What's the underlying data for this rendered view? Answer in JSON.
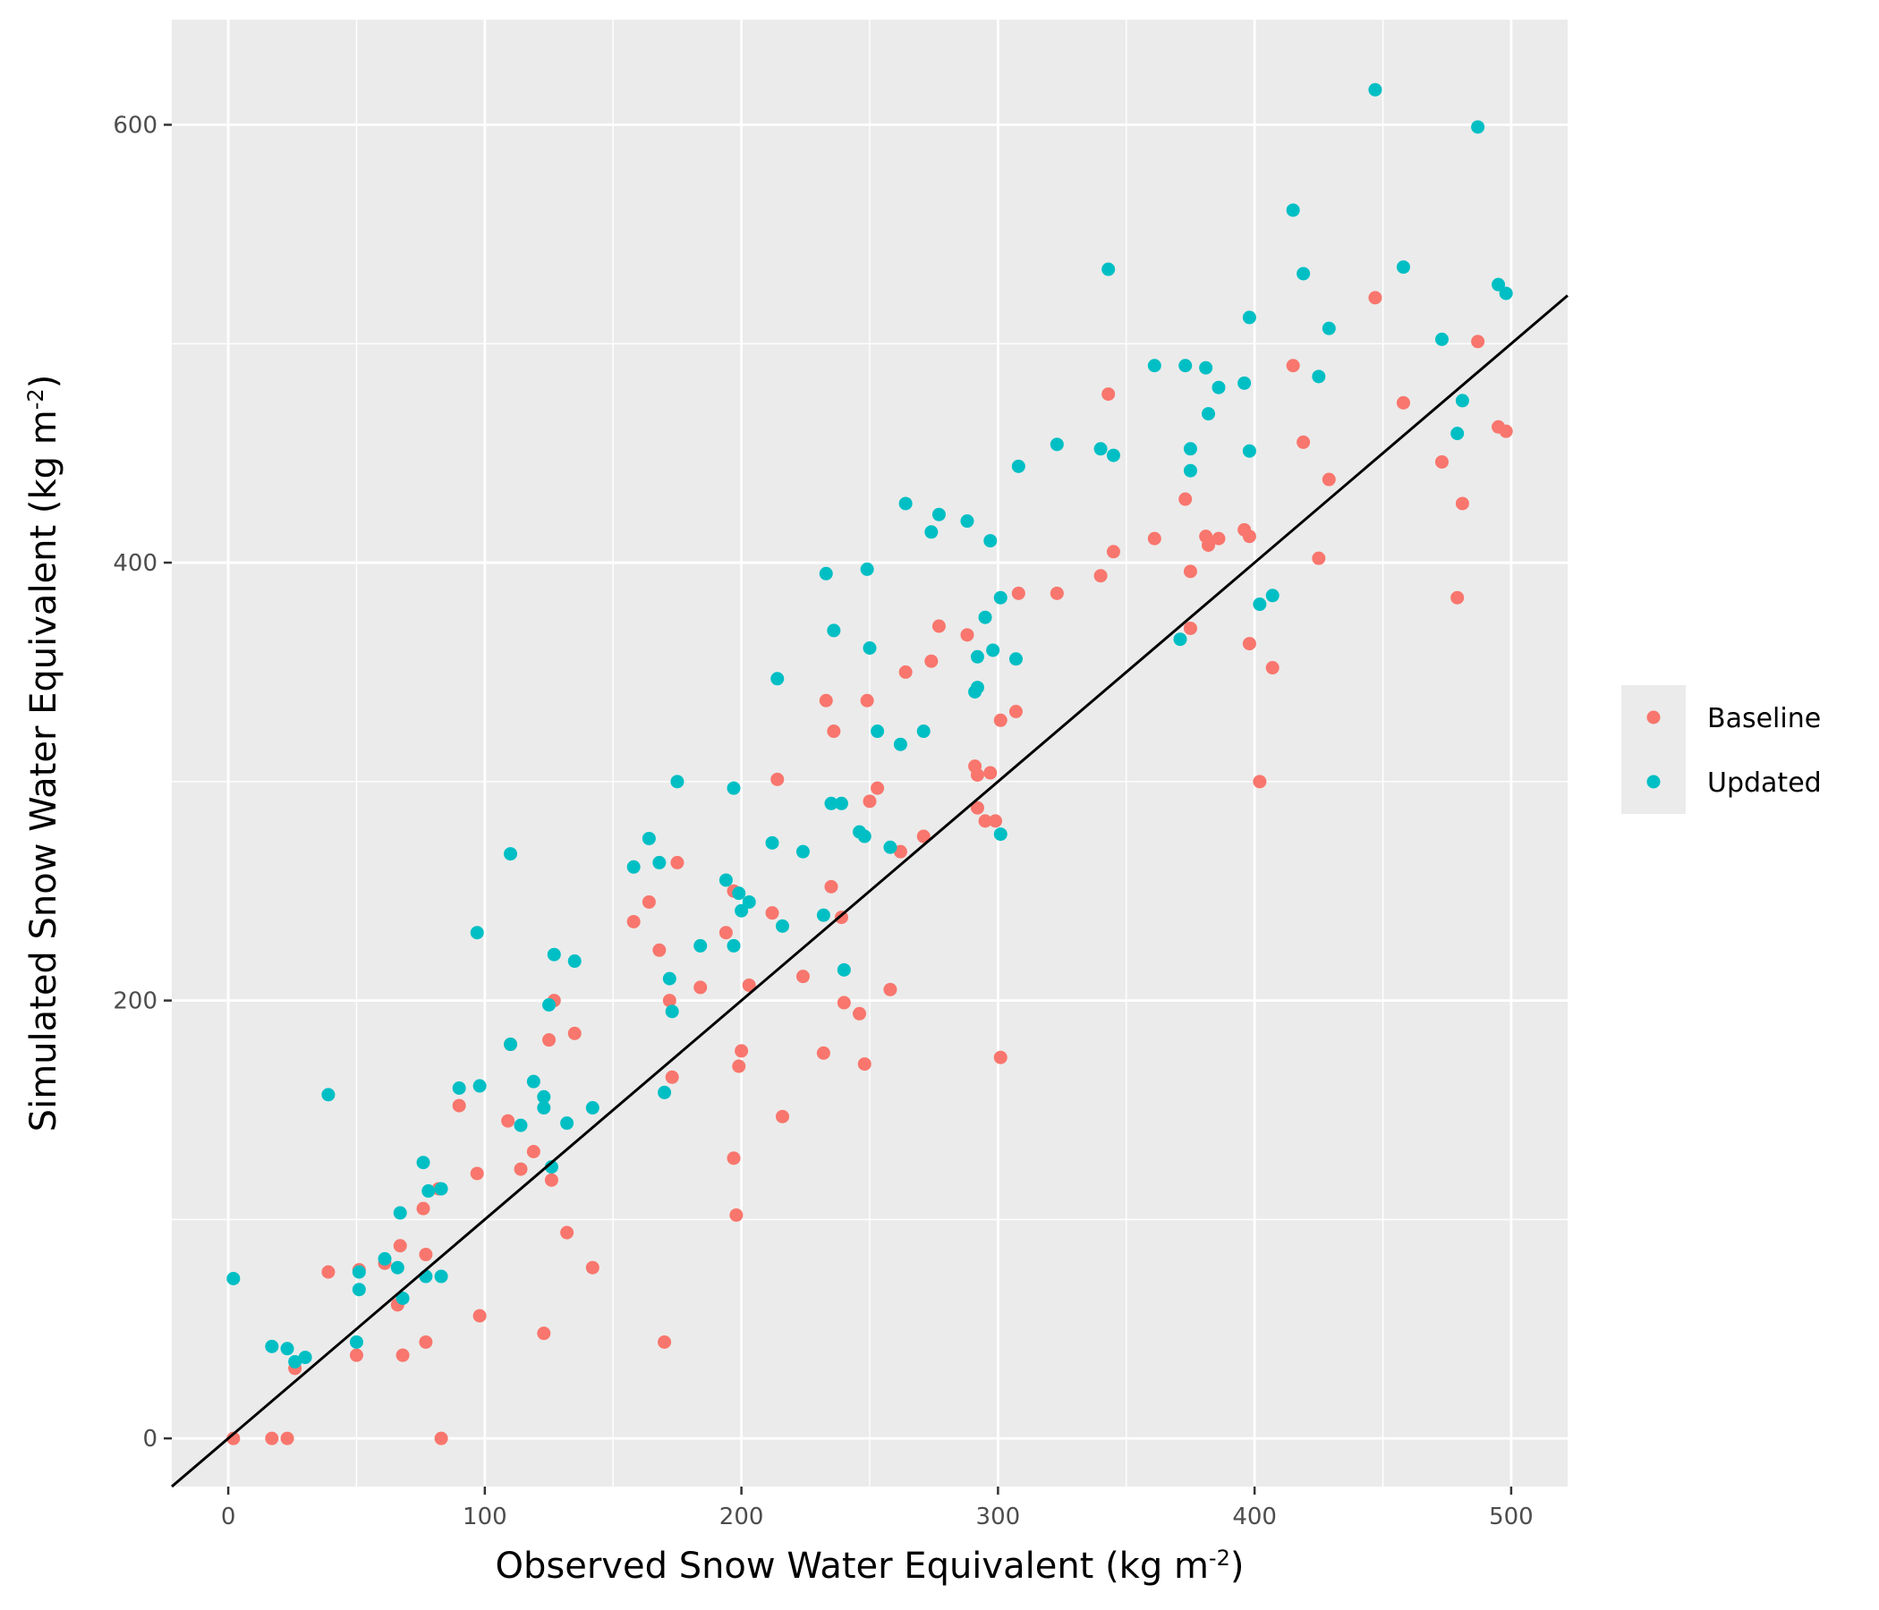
{
  "chart_data": {
    "type": "scatter",
    "xlabel": "Observed Snow Water Equivalent (kg m",
    "xlabel_sup": "-2",
    "xlabel_end": ")",
    "ylabel": "Simulated Snow Water Equivalent (kg m",
    "ylabel_sup": "-2",
    "ylabel_end": ")",
    "xlim": [
      -22,
      522
    ],
    "ylim": [
      -22,
      648
    ],
    "xticks": [
      0,
      100,
      200,
      300,
      400,
      500
    ],
    "yticks": [
      0,
      200,
      400,
      600
    ],
    "xtick_labels": [
      "0",
      "100",
      "200",
      "300",
      "400",
      "500"
    ],
    "ytick_labels": [
      "0",
      "200",
      "400",
      "600"
    ],
    "grid": true,
    "legend_position": "right",
    "reference_line": {
      "type": "1:1",
      "x": [
        -22,
        522
      ],
      "y": [
        -22,
        522
      ]
    },
    "series": [
      {
        "name": "Baseline",
        "color": "#F8766D",
        "points": [
          [
            2,
            0
          ],
          [
            17,
            0
          ],
          [
            23,
            0
          ],
          [
            26,
            32
          ],
          [
            39,
            76
          ],
          [
            50,
            38
          ],
          [
            51,
            77
          ],
          [
            61,
            80
          ],
          [
            66,
            61
          ],
          [
            67,
            88
          ],
          [
            68,
            38
          ],
          [
            76,
            105
          ],
          [
            77,
            84
          ],
          [
            77,
            44
          ],
          [
            82,
            114
          ],
          [
            83,
            0
          ],
          [
            90,
            152
          ],
          [
            97,
            121
          ],
          [
            98,
            56
          ],
          [
            109,
            145
          ],
          [
            110,
            180
          ],
          [
            114,
            123
          ],
          [
            119,
            131
          ],
          [
            123,
            48
          ],
          [
            125,
            182
          ],
          [
            126,
            118
          ],
          [
            127,
            200
          ],
          [
            132,
            94
          ],
          [
            135,
            185
          ],
          [
            142,
            78
          ],
          [
            158,
            236
          ],
          [
            164,
            245
          ],
          [
            168,
            223
          ],
          [
            170,
            44
          ],
          [
            172,
            200
          ],
          [
            173,
            165
          ],
          [
            175,
            263
          ],
          [
            184,
            206
          ],
          [
            194,
            231
          ],
          [
            197,
            250
          ],
          [
            197,
            128
          ],
          [
            198,
            102
          ],
          [
            199,
            170
          ],
          [
            200,
            177
          ],
          [
            203,
            207
          ],
          [
            212,
            240
          ],
          [
            214,
            301
          ],
          [
            216,
            147
          ],
          [
            224,
            211
          ],
          [
            232,
            176
          ],
          [
            233,
            337
          ],
          [
            235,
            252
          ],
          [
            236,
            323
          ],
          [
            239,
            238
          ],
          [
            240,
            199
          ],
          [
            246,
            194
          ],
          [
            248,
            171
          ],
          [
            249,
            337
          ],
          [
            250,
            291
          ],
          [
            253,
            297
          ],
          [
            258,
            205
          ],
          [
            262,
            268
          ],
          [
            264,
            350
          ],
          [
            271,
            275
          ],
          [
            274,
            355
          ],
          [
            277,
            371
          ],
          [
            288,
            367
          ],
          [
            291,
            307
          ],
          [
            292,
            303
          ],
          [
            292,
            288
          ],
          [
            295,
            282
          ],
          [
            297,
            304
          ],
          [
            299,
            282
          ],
          [
            301,
            328
          ],
          [
            301,
            174
          ],
          [
            307,
            332
          ],
          [
            308,
            386
          ],
          [
            323,
            386
          ],
          [
            340,
            394
          ],
          [
            343,
            477
          ],
          [
            345,
            405
          ],
          [
            361,
            411
          ],
          [
            373,
            429
          ],
          [
            375,
            370
          ],
          [
            375,
            396
          ],
          [
            381,
            412
          ],
          [
            382,
            408
          ],
          [
            386,
            411
          ],
          [
            396,
            415
          ],
          [
            398,
            412
          ],
          [
            398,
            363
          ],
          [
            402,
            300
          ],
          [
            407,
            352
          ],
          [
            415,
            490
          ],
          [
            419,
            455
          ],
          [
            425,
            402
          ],
          [
            429,
            438
          ],
          [
            447,
            521
          ],
          [
            458,
            473
          ],
          [
            473,
            446
          ],
          [
            479,
            384
          ],
          [
            481,
            427
          ],
          [
            487,
            501
          ],
          [
            495,
            462
          ],
          [
            498,
            460
          ]
        ]
      },
      {
        "name": "Updated",
        "color": "#00BFC4",
        "points": [
          [
            2,
            73
          ],
          [
            17,
            42
          ],
          [
            23,
            41
          ],
          [
            26,
            35
          ],
          [
            30,
            37
          ],
          [
            39,
            157
          ],
          [
            50,
            44
          ],
          [
            51,
            76
          ],
          [
            51,
            68
          ],
          [
            61,
            82
          ],
          [
            66,
            78
          ],
          [
            67,
            103
          ],
          [
            68,
            64
          ],
          [
            76,
            126
          ],
          [
            77,
            74
          ],
          [
            78,
            113
          ],
          [
            83,
            114
          ],
          [
            83,
            74
          ],
          [
            90,
            160
          ],
          [
            97,
            231
          ],
          [
            98,
            161
          ],
          [
            110,
            267
          ],
          [
            110,
            180
          ],
          [
            114,
            143
          ],
          [
            119,
            163
          ],
          [
            123,
            156
          ],
          [
            123,
            151
          ],
          [
            125,
            198
          ],
          [
            126,
            124
          ],
          [
            127,
            221
          ],
          [
            132,
            144
          ],
          [
            135,
            218
          ],
          [
            142,
            151
          ],
          [
            158,
            261
          ],
          [
            164,
            274
          ],
          [
            168,
            263
          ],
          [
            170,
            158
          ],
          [
            172,
            210
          ],
          [
            173,
            195
          ],
          [
            175,
            300
          ],
          [
            184,
            225
          ],
          [
            194,
            255
          ],
          [
            197,
            297
          ],
          [
            197,
            225
          ],
          [
            199,
            249
          ],
          [
            200,
            241
          ],
          [
            203,
            245
          ],
          [
            212,
            272
          ],
          [
            214,
            347
          ],
          [
            216,
            234
          ],
          [
            224,
            268
          ],
          [
            232,
            239
          ],
          [
            233,
            395
          ],
          [
            235,
            290
          ],
          [
            236,
            369
          ],
          [
            239,
            290
          ],
          [
            240,
            214
          ],
          [
            246,
            277
          ],
          [
            248,
            275
          ],
          [
            249,
            397
          ],
          [
            250,
            361
          ],
          [
            253,
            323
          ],
          [
            258,
            270
          ],
          [
            262,
            317
          ],
          [
            264,
            427
          ],
          [
            271,
            323
          ],
          [
            274,
            414
          ],
          [
            277,
            422
          ],
          [
            288,
            419
          ],
          [
            291,
            341
          ],
          [
            292,
            357
          ],
          [
            292,
            343
          ],
          [
            295,
            375
          ],
          [
            297,
            410
          ],
          [
            298,
            360
          ],
          [
            301,
            384
          ],
          [
            301,
            276
          ],
          [
            307,
            356
          ],
          [
            308,
            444
          ],
          [
            323,
            454
          ],
          [
            340,
            452
          ],
          [
            343,
            534
          ],
          [
            345,
            449
          ],
          [
            361,
            490
          ],
          [
            373,
            490
          ],
          [
            371,
            365
          ],
          [
            375,
            452
          ],
          [
            375,
            442
          ],
          [
            381,
            489
          ],
          [
            382,
            468
          ],
          [
            386,
            480
          ],
          [
            396,
            482
          ],
          [
            398,
            512
          ],
          [
            398,
            451
          ],
          [
            402,
            381
          ],
          [
            407,
            385
          ],
          [
            415,
            561
          ],
          [
            419,
            532
          ],
          [
            425,
            485
          ],
          [
            429,
            507
          ],
          [
            447,
            616
          ],
          [
            458,
            535
          ],
          [
            473,
            502
          ],
          [
            479,
            459
          ],
          [
            481,
            474
          ],
          [
            487,
            599
          ],
          [
            495,
            527
          ],
          [
            498,
            523
          ]
        ]
      }
    ]
  }
}
